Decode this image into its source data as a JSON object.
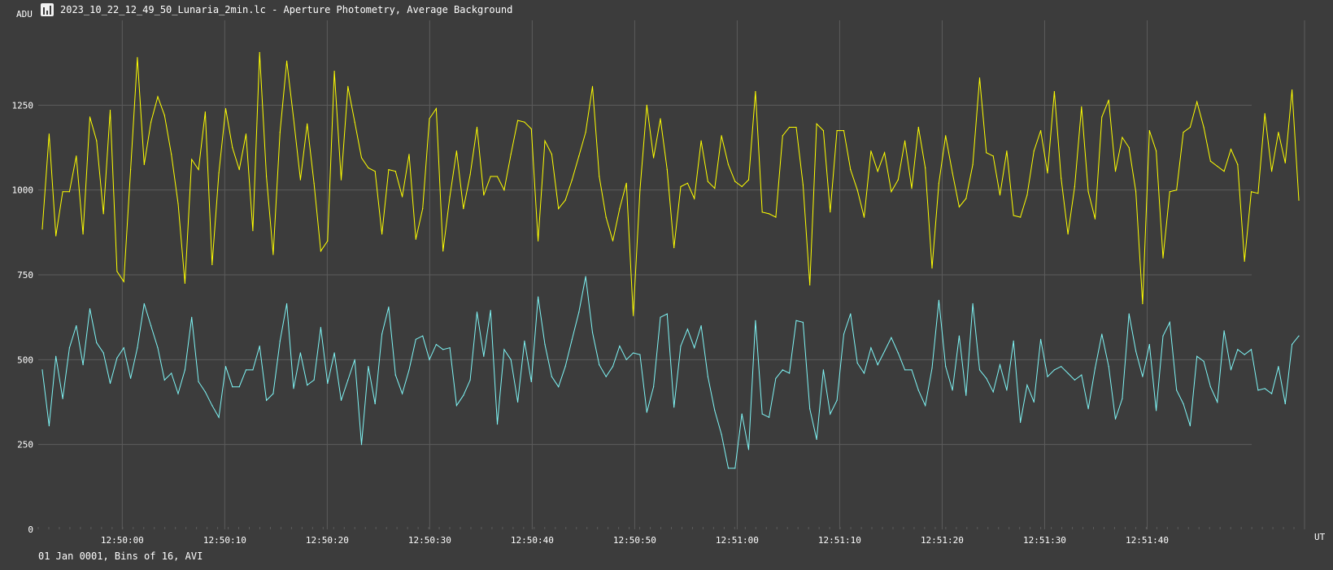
{
  "window": {
    "title": "2023_10_22_12_49_50_Lunaria_2min.lc - Aperture Photometry, Average Background"
  },
  "footer": {
    "text": "01 Jan 0001, Bins of 16, AVI"
  },
  "colors": {
    "background": "#3c3c3c",
    "grid": "#5c5c5c",
    "axis_text": "#ffffff",
    "series_yellow": "#ffff00",
    "series_cyan": "#7ff5f5"
  },
  "icons": {
    "app": "light-curve-app-icon"
  },
  "chart_data": {
    "type": "line",
    "title": "",
    "xlabel": "UT",
    "ylabel": "ADU",
    "grid": true,
    "ylim": [
      0,
      1500
    ],
    "x_range_seconds_utc": [
      "12:49:51.8",
      "12:51:50.2"
    ],
    "yticks": [
      0,
      250,
      500,
      750,
      1000,
      1250
    ],
    "ytick_labels": [
      "0",
      "250",
      "500",
      "750",
      "1000",
      "1250"
    ],
    "xtick_labels": [
      "12:50:00",
      "12:50:10",
      "12:50:20",
      "12:50:30",
      "12:50:40",
      "12:50:50",
      "12:51:00",
      "12:51:10",
      "12:51:20",
      "12:51:30",
      "12:51:40"
    ],
    "series": [
      {
        "color": "#ffff00",
        "values": [
          885,
          1165,
          865,
          995,
          995,
          1100,
          870,
          1215,
          1145,
          930,
          1235,
          760,
          730,
          1060,
          1390,
          1075,
          1200,
          1275,
          1220,
          1105,
          960,
          725,
          1090,
          1060,
          1230,
          780,
          1050,
          1240,
          1125,
          1060,
          1165,
          880,
          1405,
          1040,
          810,
          1170,
          1380,
          1210,
          1030,
          1195,
          1020,
          820,
          850,
          1350,
          1030,
          1305,
          1200,
          1095,
          1065,
          1055,
          870,
          1060,
          1055,
          980,
          1105,
          855,
          945,
          1210,
          1240,
          820,
          980,
          1115,
          945,
          1045,
          1185,
          985,
          1040,
          1040,
          1000,
          1105,
          1205,
          1200,
          1180,
          850,
          1145,
          1105,
          945,
          970,
          1030,
          1100,
          1170,
          1305,
          1040,
          920,
          850,
          945,
          1020,
          630,
          1000,
          1250,
          1095,
          1210,
          1060,
          830,
          1010,
          1020,
          975,
          1145,
          1025,
          1005,
          1160,
          1075,
          1025,
          1010,
          1030,
          1290,
          935,
          930,
          920,
          1160,
          1185,
          1185,
          1015,
          720,
          1195,
          1175,
          935,
          1175,
          1175,
          1060,
          1000,
          920,
          1115,
          1055,
          1110,
          995,
          1030,
          1145,
          1005,
          1185,
          1065,
          770,
          1020,
          1160,
          1050,
          950,
          975,
          1075,
          1330,
          1110,
          1100,
          985,
          1115,
          925,
          920,
          985,
          1115,
          1175,
          1050,
          1290,
          1035,
          870,
          1010,
          1245,
          995,
          915,
          1215,
          1265,
          1055,
          1155,
          1125,
          995,
          665,
          1175,
          1115,
          800,
          995,
          1000,
          1170,
          1185,
          1260,
          1185,
          1085,
          1070,
          1055,
          1120,
          1075,
          790,
          995,
          990,
          1225,
          1055,
          1170,
          1080,
          1295,
          970
        ]
      },
      {
        "color": "#7ff5f5",
        "values": [
          470,
          305,
          510,
          385,
          535,
          600,
          485,
          650,
          550,
          520,
          430,
          505,
          535,
          445,
          535,
          665,
          600,
          535,
          440,
          460,
          400,
          470,
          625,
          435,
          405,
          365,
          330,
          480,
          420,
          420,
          470,
          470,
          540,
          380,
          400,
          555,
          665,
          415,
          520,
          425,
          440,
          595,
          430,
          520,
          380,
          440,
          500,
          250,
          480,
          370,
          575,
          655,
          455,
          400,
          470,
          560,
          570,
          500,
          545,
          530,
          535,
          365,
          395,
          440,
          640,
          510,
          645,
          310,
          530,
          500,
          375,
          555,
          435,
          685,
          545,
          450,
          420,
          480,
          560,
          640,
          745,
          580,
          485,
          450,
          480,
          540,
          500,
          520,
          515,
          345,
          420,
          625,
          635,
          360,
          540,
          590,
          535,
          600,
          450,
          350,
          280,
          180,
          180,
          340,
          235,
          615,
          340,
          330,
          445,
          470,
          460,
          615,
          610,
          355,
          265,
          470,
          340,
          380,
          575,
          635,
          490,
          460,
          535,
          485,
          525,
          565,
          520,
          470,
          470,
          410,
          365,
          475,
          675,
          480,
          410,
          570,
          395,
          665,
          470,
          445,
          405,
          485,
          410,
          555,
          315,
          425,
          375,
          560,
          450,
          470,
          480,
          460,
          440,
          455,
          355,
          475,
          575,
          480,
          325,
          385,
          635,
          525,
          450,
          545,
          350,
          570,
          610,
          410,
          370,
          305,
          510,
          495,
          420,
          375,
          585,
          470,
          530,
          515,
          530,
          410,
          415,
          400,
          480,
          370,
          545,
          570
        ]
      }
    ]
  }
}
